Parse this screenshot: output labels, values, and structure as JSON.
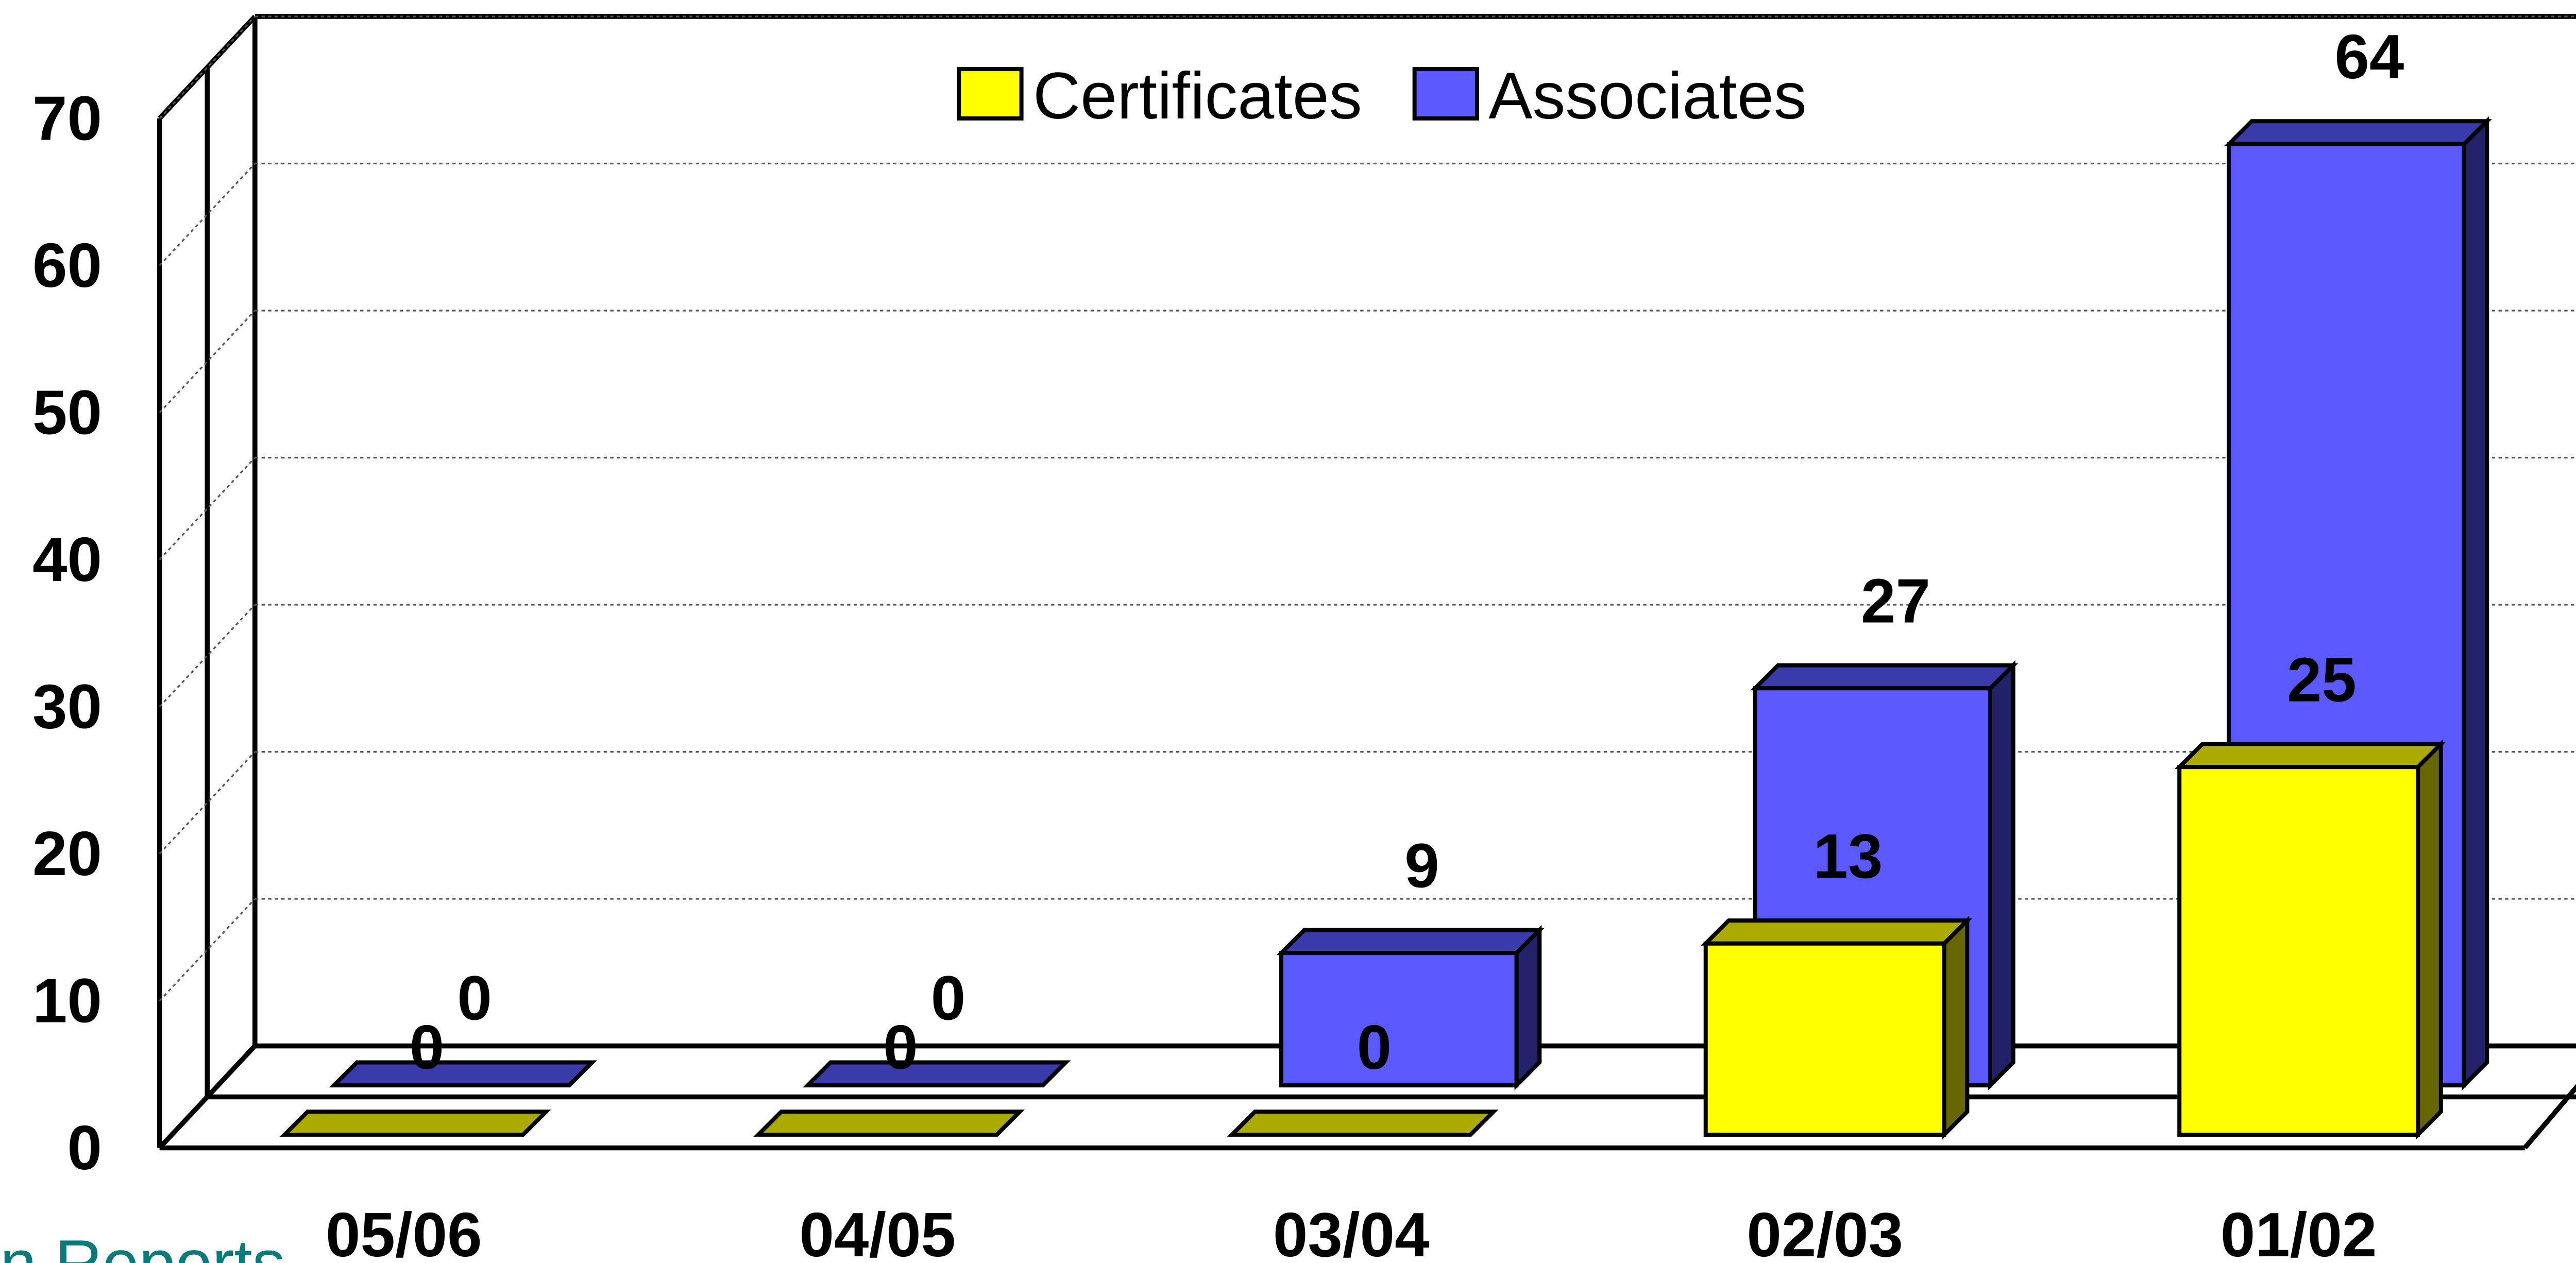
{
  "chart_data": {
    "type": "bar3d",
    "note": "n Reports",
    "categories": [
      "05/06",
      "04/05",
      "03/04",
      "02/03",
      "01/02"
    ],
    "series": [
      {
        "name": "Certificates",
        "color": "#ffff00",
        "values": [
          0,
          0,
          0,
          13,
          25
        ]
      },
      {
        "name": "Associates",
        "color": "#5a5aff",
        "values": [
          0,
          0,
          9,
          27,
          64
        ]
      }
    ],
    "ylim": [
      0,
      70
    ],
    "yticks": [
      0,
      10,
      20,
      30,
      40,
      50,
      60,
      70
    ],
    "grid": true,
    "legend": "top"
  }
}
